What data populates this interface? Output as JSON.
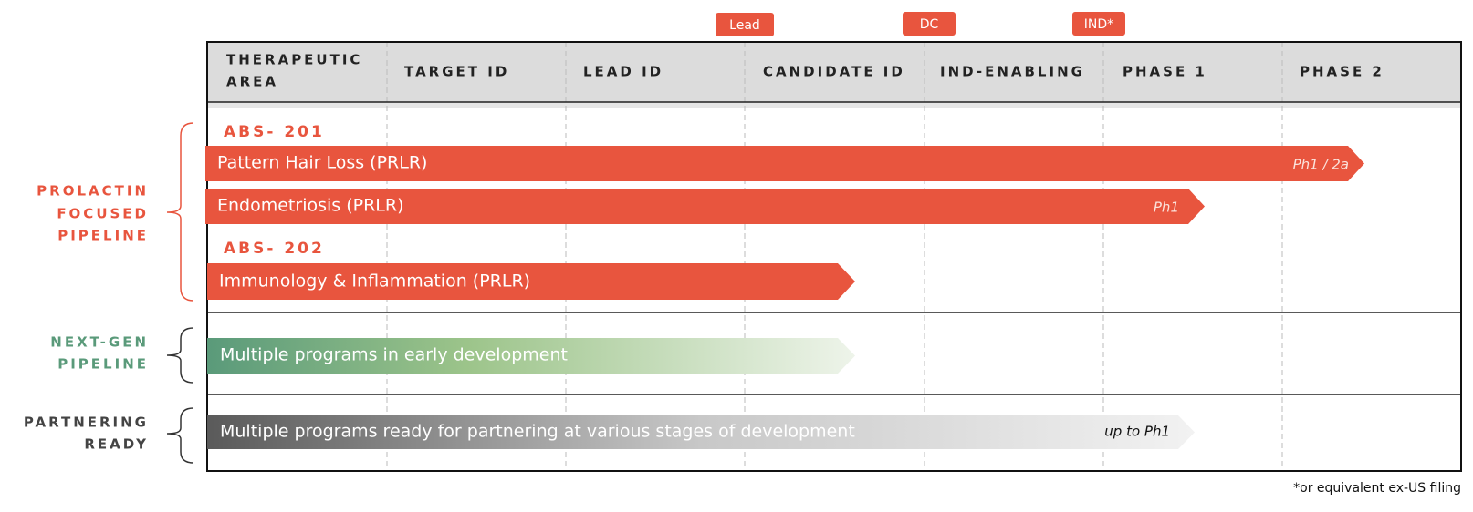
{
  "milestones": [
    "Lead",
    "DC",
    "IND*"
  ],
  "header": {
    "area": [
      "THERAPEUTIC",
      "AREA"
    ],
    "columns": [
      "TARGET ID",
      "LEAD ID",
      "CANDIDATE ID",
      "IND-ENABLING",
      "PHASE 1",
      "PHASE 2"
    ]
  },
  "groups": [
    {
      "label": [
        "PROLACTIN",
        "FOCUSED",
        "PIPELINE"
      ],
      "programs": [
        {
          "name": "ABS- 201",
          "bars": [
            {
              "label": "Pattern Hair Loss (PRLR)",
              "stage": "Ph1 / 2a"
            },
            {
              "label": "Endometriosis (PRLR)",
              "stage": "Ph1"
            }
          ]
        },
        {
          "name": "ABS- 202",
          "bars": [
            {
              "label": "Immunology & Inflammation (PRLR)"
            }
          ]
        }
      ]
    },
    {
      "label": [
        "NEXT-GEN",
        "PIPELINE"
      ],
      "bar": {
        "label": "Multiple programs in early development"
      }
    },
    {
      "label": [
        "PARTNERING",
        "READY"
      ],
      "bar": {
        "label": "Multiple programs ready for partnering at various stages of development",
        "stage": "up to Ph1"
      }
    }
  ],
  "footnote": "*or equivalent ex-US filing"
}
